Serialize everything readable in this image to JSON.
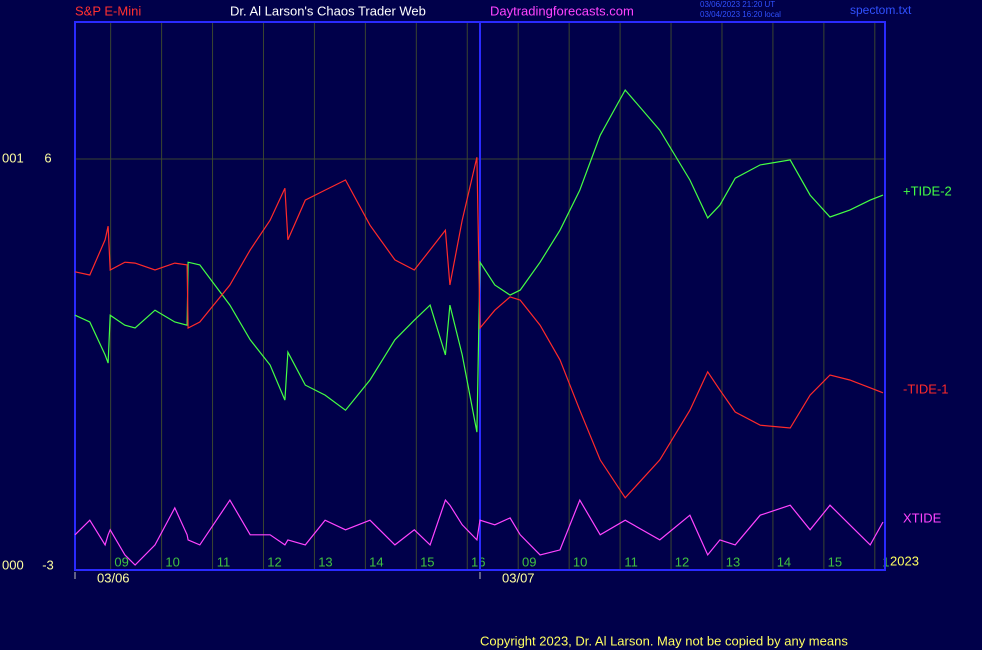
{
  "chart_data": {
    "type": "line",
    "symbol": "S&P E-Mini",
    "title": "Dr. Al Larson's Chaos Trader Web",
    "site": "Daytradingforecasts.com",
    "timestamps": [
      "03/06/2023 21:20 UT",
      "03/04/2023 16:20 local"
    ],
    "file": "spectom.txt",
    "year": "2023",
    "copyright": "Copyright 2023, Dr. Al Larson. May not be copied by any means",
    "scale_labels": [
      "001",
      "000"
    ],
    "xlim": [
      -0.7,
      15.2
    ],
    "xticks": [
      {
        "value": 0,
        "label": "09"
      },
      {
        "value": 1,
        "label": "10"
      },
      {
        "value": 2,
        "label": "11"
      },
      {
        "value": 3,
        "label": "12"
      },
      {
        "value": 4,
        "label": "13"
      },
      {
        "value": 5,
        "label": "14"
      },
      {
        "value": 6,
        "label": "15"
      },
      {
        "value": 7,
        "label": "16"
      },
      {
        "value": 8,
        "label": "09"
      },
      {
        "value": 9,
        "label": "10"
      },
      {
        "value": 10,
        "label": "11"
      },
      {
        "value": 11,
        "label": "12"
      },
      {
        "value": 12,
        "label": "13"
      },
      {
        "value": 13,
        "label": "14"
      },
      {
        "value": 14,
        "label": "15"
      },
      {
        "value": 15,
        "label": "1"
      }
    ],
    "date_ticks": [
      {
        "value": -0.7,
        "label": "03/06"
      },
      {
        "value": 7.25,
        "label": "03/07"
      }
    ],
    "ylim": [
      -3,
      9
    ],
    "yticks": [
      6,
      -3
    ],
    "grid": true,
    "x": [
      -0.7,
      -0.41,
      -0.11,
      -0.05,
      -0.01,
      0.28,
      0.48,
      0.87,
      1.26,
      1.5,
      1.52,
      1.75,
      2.34,
      2.74,
      3.13,
      3.42,
      3.48,
      3.82,
      4.21,
      4.61,
      5.09,
      5.58,
      5.96,
      6.27,
      6.57,
      6.66,
      6.9,
      7.19,
      7.25,
      7.54,
      7.84,
      8.04,
      8.43,
      8.82,
      9.21,
      9.61,
      10.1,
      10.78,
      11.37,
      11.72,
      11.96,
      12.26,
      12.75,
      13.34,
      13.73,
      14.12,
      14.51,
      14.91,
      15.16
    ],
    "series": [
      {
        "name": "+TIDE-2",
        "color": "#44ff44",
        "values": [
          2.58,
          2.43,
          1.71,
          1.53,
          2.58,
          2.36,
          2.3,
          2.69,
          2.43,
          2.36,
          3.74,
          3.68,
          2.8,
          2.04,
          1.49,
          0.72,
          1.77,
          1.05,
          0.83,
          0.5,
          1.16,
          2.04,
          2.47,
          2.8,
          1.71,
          2.8,
          1.71,
          0.02,
          3.74,
          3.24,
          3.02,
          3.13,
          3.74,
          4.44,
          5.32,
          6.52,
          7.51,
          6.63,
          5.54,
          4.71,
          4.99,
          5.58,
          5.87,
          5.98,
          5.21,
          4.73,
          4.88,
          5.1,
          5.21
        ]
      },
      {
        "name": "-TIDE-1",
        "color": "#ff2a2a",
        "values": [
          3.53,
          3.46,
          4.23,
          4.53,
          3.57,
          3.74,
          3.72,
          3.57,
          3.72,
          3.68,
          2.3,
          2.43,
          3.24,
          4.01,
          4.66,
          5.36,
          4.23,
          5.1,
          5.32,
          5.54,
          4.55,
          3.79,
          3.57,
          4.01,
          4.44,
          3.24,
          4.66,
          6.04,
          2.3,
          2.69,
          2.98,
          2.91,
          2.36,
          1.6,
          0.5,
          -0.59,
          -1.42,
          -0.59,
          0.5,
          1.34,
          0.94,
          0.46,
          0.17,
          0.11,
          0.83,
          1.27,
          1.16,
          0.99,
          0.88
        ]
      },
      {
        "name": "XTIDE",
        "color": "#ff44ff",
        "values": [
          -2.23,
          -1.91,
          -2.45,
          -2.23,
          -2.12,
          -2.67,
          -2.89,
          -2.45,
          -1.64,
          -2.23,
          -2.34,
          -2.45,
          -1.47,
          -2.23,
          -2.23,
          -2.45,
          -2.34,
          -2.45,
          -1.91,
          -2.12,
          -1.91,
          -2.45,
          -2.12,
          -2.45,
          -1.47,
          -1.58,
          -2.01,
          -2.34,
          -1.91,
          -2.01,
          -1.86,
          -2.23,
          -2.67,
          -2.56,
          -1.47,
          -2.23,
          -1.91,
          -2.34,
          -1.8,
          -2.67,
          -2.34,
          -2.45,
          -1.8,
          -1.58,
          -2.12,
          -1.58,
          -2.01,
          -2.45,
          -1.95
        ]
      }
    ]
  }
}
